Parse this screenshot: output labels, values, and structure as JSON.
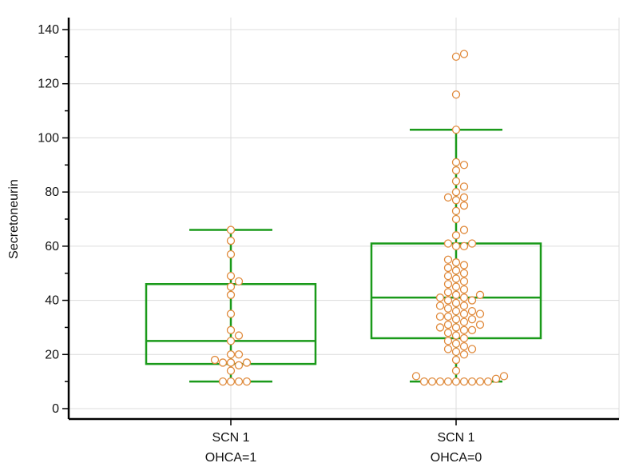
{
  "chart_data": {
    "type": "box",
    "ylabel": "Secretoneurin",
    "ylim": [
      0,
      140
    ],
    "yticks": [
      0,
      20,
      40,
      60,
      80,
      100,
      120,
      140
    ],
    "grid": true,
    "colors": {
      "box": "#1a9a1a",
      "point_edge": "#e08a3c",
      "point_fill": "#ffffff",
      "grid": "#dcdcdc",
      "axis": "#000000"
    },
    "groups": [
      {
        "label_line1": "SCN 1",
        "label_line2": "OHCA=1",
        "whisker_low": 10,
        "q1": 16.5,
        "median": 25,
        "q3": 46,
        "whisker_high": 66,
        "points": [
          10,
          10,
          10,
          10,
          14,
          16,
          17,
          17,
          17,
          18,
          20,
          20,
          25,
          27,
          29,
          35,
          42,
          45,
          47,
          49,
          57,
          62,
          66
        ]
      },
      {
        "label_line1": "SCN 1",
        "label_line2": "OHCA=0",
        "whisker_low": 10,
        "q1": 26,
        "median": 41,
        "q3": 61,
        "whisker_high": 103,
        "points": [
          10,
          10,
          10,
          10,
          10,
          10,
          10,
          10,
          10,
          11,
          12,
          12,
          14,
          18,
          20,
          21,
          22,
          22,
          23,
          24,
          25,
          26,
          27,
          28,
          29,
          29,
          30,
          30,
          31,
          31,
          32,
          33,
          33,
          34,
          34,
          35,
          35,
          36,
          36,
          37,
          38,
          38,
          39,
          40,
          40,
          41,
          41,
          42,
          42,
          43,
          44,
          45,
          46,
          47,
          48,
          49,
          50,
          51,
          52,
          53,
          54,
          55,
          60,
          60,
          61,
          61,
          64,
          66,
          70,
          73,
          75,
          77,
          78,
          78,
          80,
          82,
          84,
          88,
          90,
          91,
          103,
          116,
          130,
          131
        ]
      }
    ]
  }
}
